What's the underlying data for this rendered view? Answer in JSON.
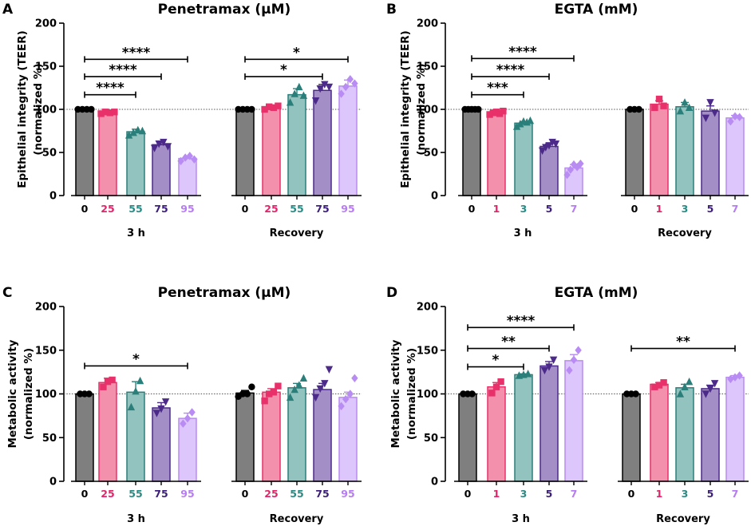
{
  "panels": [
    {
      "letter": "A",
      "title": "Penetramax (µM)",
      "ylabel_lines": [
        "Epithelial integrity (TEER)",
        "(normalized %)"
      ],
      "ylim": [
        0,
        200
      ],
      "yticks": [
        "0",
        "50",
        "100",
        "150",
        "200"
      ],
      "groups": [
        "3 h",
        "Recovery"
      ],
      "categories": [
        "0",
        "25",
        "55",
        "75",
        "95"
      ],
      "series": [
        {
          "group": "3 h",
          "values": [
            100,
            96,
            74,
            59,
            43
          ],
          "errors": [
            0,
            2,
            3,
            3,
            3
          ]
        },
        {
          "group": "Recovery",
          "values": [
            100,
            102,
            117,
            122,
            127
          ],
          "errors": [
            0,
            2,
            7,
            7,
            7
          ]
        }
      ],
      "points": [
        {
          "group": "3 h",
          "values": [
            [
              100,
              100,
              100,
              100
            ],
            [
              95,
              97,
              96,
              97
            ],
            [
              70,
              73,
              76,
              75
            ],
            [
              55,
              60,
              62,
              57
            ],
            [
              40,
              44,
              46,
              42
            ]
          ]
        },
        {
          "group": "Recovery",
          "values": [
            [
              100,
              100,
              100,
              100
            ],
            [
              100,
              103,
              102,
              104
            ],
            [
              108,
              118,
              126,
              116
            ],
            [
              110,
              124,
              129,
              126
            ],
            [
              118,
              126,
              135,
              130
            ]
          ]
        }
      ],
      "significance": [
        {
          "label": "****",
          "group": "3 h",
          "from": "0",
          "to": "55",
          "y": 117
        },
        {
          "label": "****",
          "group": "3 h",
          "from": "0",
          "to": "75",
          "y": 138
        },
        {
          "label": "****",
          "group": "3 h",
          "from": "0",
          "to": "95",
          "y": 158
        },
        {
          "label": "*",
          "group": "Recovery",
          "from": "0",
          "to": "75",
          "y": 138
        },
        {
          "label": "*",
          "group": "Recovery",
          "from": "0",
          "to": "95",
          "y": 158
        }
      ]
    },
    {
      "letter": "B",
      "title": "EGTA (mM)",
      "ylabel_lines": [
        "Epithelial integrity (TEER)",
        "(normalized %)"
      ],
      "ylim": [
        0,
        200
      ],
      "yticks": [
        "0",
        "50",
        "100",
        "150",
        "200"
      ],
      "groups": [
        "3 h",
        "Recovery"
      ],
      "categories": [
        "0",
        "1",
        "3",
        "5",
        "7"
      ],
      "series": [
        {
          "group": "3 h",
          "values": [
            100,
            96,
            84,
            57,
            32
          ],
          "errors": [
            0,
            1,
            2,
            3,
            4
          ]
        },
        {
          "group": "Recovery",
          "values": [
            100,
            106,
            103,
            98,
            90
          ],
          "errors": [
            0,
            4,
            5,
            6,
            3
          ]
        }
      ],
      "points": [
        {
          "group": "3 h",
          "values": [
            [
              100,
              100,
              100,
              100,
              100
            ],
            [
              94,
              96,
              97,
              95,
              98
            ],
            [
              80,
              83,
              86,
              85,
              87
            ],
            [
              52,
              56,
              58,
              62,
              60
            ],
            [
              24,
              30,
              36,
              33,
              37
            ]
          ]
        },
        {
          "group": "Recovery",
          "values": [
            [
              100,
              100,
              100
            ],
            [
              102,
              112,
              104
            ],
            [
              98,
              108,
              102
            ],
            [
              90,
              108,
              96
            ],
            [
              86,
              92,
              91
            ]
          ]
        }
      ],
      "significance": [
        {
          "label": "***",
          "group": "3 h",
          "from": "0",
          "to": "3",
          "y": 117
        },
        {
          "label": "****",
          "group": "3 h",
          "from": "0",
          "to": "5",
          "y": 138
        },
        {
          "label": "****",
          "group": "3 h",
          "from": "0",
          "to": "7",
          "y": 159
        }
      ]
    },
    {
      "letter": "C",
      "title": "Penetramax (µM)",
      "ylabel_lines": [
        "Metabolic activity",
        "(normalized %)"
      ],
      "ylim": [
        0,
        200
      ],
      "yticks": [
        "0",
        "50",
        "100",
        "150",
        "200"
      ],
      "groups": [
        "3 h",
        "Recovery"
      ],
      "categories": [
        "0",
        "25",
        "55",
        "75",
        "95"
      ],
      "series": [
        {
          "group": "3 h",
          "values": [
            100,
            113,
            102,
            84,
            72
          ],
          "errors": [
            0,
            5,
            12,
            6,
            6
          ]
        },
        {
          "group": "Recovery",
          "values": [
            101,
            102,
            107,
            105,
            96
          ],
          "errors": [
            3,
            4,
            5,
            7,
            6
          ]
        }
      ],
      "points": [
        {
          "group": "3 h",
          "values": [
            [
              100,
              100,
              100
            ],
            [
              108,
              114,
              116
            ],
            [
              85,
              103,
              115
            ],
            [
              78,
              83,
              91
            ],
            [
              66,
              72,
              79
            ]
          ]
        },
        {
          "group": "Recovery",
          "values": [
            [
              97,
              100,
              100,
              108
            ],
            [
              92,
              100,
              102,
              109
            ],
            [
              96,
              105,
              110,
              118
            ],
            [
              96,
              106,
              112,
              128
            ],
            [
              86,
              94,
              100,
              118
            ]
          ]
        }
      ],
      "significance": [
        {
          "label": "*",
          "group": "3 h",
          "from": "0",
          "to": "95",
          "y": 132
        }
      ]
    },
    {
      "letter": "D",
      "title": "EGTA (mM)",
      "ylabel_lines": [
        "Metabolic activity",
        "(normalized %)"
      ],
      "ylim": [
        0,
        200
      ],
      "yticks": [
        "0",
        "50",
        "100",
        "150",
        "200"
      ],
      "groups": [
        "3 h",
        "Recovery"
      ],
      "categories": [
        "0",
        "1",
        "3",
        "5",
        "7"
      ],
      "series": [
        {
          "group": "3 h",
          "values": [
            100,
            108,
            122,
            132,
            138
          ],
          "errors": [
            0,
            5,
            1,
            5,
            7
          ]
        },
        {
          "group": "Recovery",
          "values": [
            100,
            111,
            107,
            106,
            119
          ],
          "errors": [
            0,
            2,
            4,
            4,
            2
          ]
        }
      ],
      "points": [
        {
          "group": "3 h",
          "values": [
            [
              100,
              100,
              100
            ],
            [
              101,
              108,
              114
            ],
            [
              121,
              122,
              123
            ],
            [
              127,
              131,
              139
            ],
            [
              127,
              139,
              150
            ]
          ]
        },
        {
          "group": "Recovery",
          "values": [
            [
              100,
              100,
              100
            ],
            [
              108,
              110,
              113
            ],
            [
              100,
              108,
              114
            ],
            [
              100,
              106,
              112
            ],
            [
              117,
              119,
              121
            ]
          ]
        }
      ],
      "significance": [
        {
          "label": "*",
          "group": "3 h",
          "from": "0",
          "to": "3",
          "y": 131
        },
        {
          "label": "**",
          "group": "3 h",
          "from": "0",
          "to": "5",
          "y": 152
        },
        {
          "label": "****",
          "group": "3 h",
          "from": "0",
          "to": "7",
          "y": 176
        },
        {
          "label": "**",
          "group": "Recovery",
          "from": "0",
          "to": "7",
          "y": 152
        }
      ]
    }
  ],
  "colors": {
    "fills": [
      "#7f7f7f",
      "#f391ad",
      "#93c3bf",
      "#a38ec6",
      "#ddc6fb"
    ],
    "strokes": [
      "#000000",
      "#e8306a",
      "#2a7f7a",
      "#4b2a8a",
      "#b88cf2"
    ],
    "labels": [
      "#000000",
      "#e0266a",
      "#2a8a84",
      "#3b1f7a",
      "#b77cf3"
    ]
  },
  "chart_data": [
    {
      "type": "bar",
      "title": "Penetramax (µM)",
      "ylabel": "Epithelial integrity (TEER) (normalized %)",
      "ylim": [
        0,
        200
      ],
      "categories": [
        "0",
        "25",
        "55",
        "75",
        "95"
      ],
      "series": [
        {
          "name": "3 h",
          "values": [
            100,
            96,
            74,
            59,
            43
          ]
        },
        {
          "name": "Recovery",
          "values": [
            100,
            102,
            117,
            122,
            127
          ]
        }
      ]
    },
    {
      "type": "bar",
      "title": "EGTA (mM)",
      "ylabel": "Epithelial integrity (TEER) (normalized %)",
      "ylim": [
        0,
        200
      ],
      "categories": [
        "0",
        "1",
        "3",
        "5",
        "7"
      ],
      "series": [
        {
          "name": "3 h",
          "values": [
            100,
            96,
            84,
            57,
            32
          ]
        },
        {
          "name": "Recovery",
          "values": [
            100,
            106,
            103,
            98,
            90
          ]
        }
      ]
    },
    {
      "type": "bar",
      "title": "Penetramax (µM)",
      "ylabel": "Metabolic activity (normalized %)",
      "ylim": [
        0,
        200
      ],
      "categories": [
        "0",
        "25",
        "55",
        "75",
        "95"
      ],
      "series": [
        {
          "name": "3 h",
          "values": [
            100,
            113,
            102,
            84,
            72
          ]
        },
        {
          "name": "Recovery",
          "values": [
            101,
            102,
            107,
            105,
            96
          ]
        }
      ]
    },
    {
      "type": "bar",
      "title": "EGTA (mM)",
      "ylabel": "Metabolic activity (normalized %)",
      "ylim": [
        0,
        200
      ],
      "categories": [
        "0",
        "1",
        "3",
        "5",
        "7"
      ],
      "series": [
        {
          "name": "3 h",
          "values": [
            100,
            108,
            122,
            132,
            138
          ]
        },
        {
          "name": "Recovery",
          "values": [
            100,
            111,
            107,
            106,
            119
          ]
        }
      ]
    }
  ]
}
